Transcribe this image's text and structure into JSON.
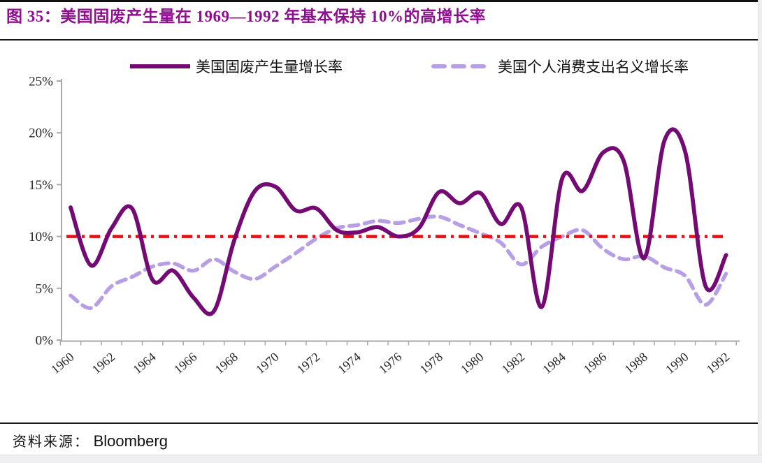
{
  "header": {
    "title_prefix": "图 35：",
    "title_text": "美国固废产生量在 1969—1992 年基本保持 10%的高增长率"
  },
  "footer": {
    "source_label": "资料来源：",
    "source_value": "Bloomberg"
  },
  "colors": {
    "title": "#8E108E",
    "series_solid": "#740B74",
    "series_dashed": "#B79FE5",
    "reference_line": "#E8100F",
    "axis": "#A8A8A8",
    "tick_label": "#262626"
  },
  "chart_data": {
    "type": "line",
    "title": "美国固废产生量在 1969—1992 年基本保持 10%的高增长率",
    "grid": false,
    "legend_position": "top",
    "ylim": [
      0,
      25
    ],
    "ytick_values": [
      0,
      5,
      10,
      15,
      20,
      25
    ],
    "ytick_labels": [
      "0%",
      "5%",
      "10%",
      "15%",
      "20%",
      "25%"
    ],
    "xtick_labels": [
      "1960",
      "1962",
      "1964",
      "1966",
      "1968",
      "1970",
      "1972",
      "1974",
      "1976",
      "1978",
      "1980",
      "1982",
      "1984",
      "1986",
      "1988",
      "1990",
      "1992"
    ],
    "x_years": [
      1960,
      1961,
      1962,
      1963,
      1964,
      1965,
      1966,
      1967,
      1968,
      1969,
      1970,
      1971,
      1972,
      1973,
      1974,
      1975,
      1976,
      1977,
      1978,
      1979,
      1980,
      1981,
      1982,
      1983,
      1984,
      1985,
      1986,
      1987,
      1988,
      1989,
      1990,
      1991,
      1992
    ],
    "series": [
      {
        "name": "美国固废产生量增长率",
        "line_style": "solid",
        "color": "#740B74",
        "unit": "%",
        "values": [
          12.8,
          7.2,
          10.8,
          12.7,
          5.8,
          6.7,
          4.1,
          2.8,
          9.7,
          14.4,
          14.8,
          12.5,
          12.7,
          10.6,
          10.4,
          10.9,
          10.0,
          10.8,
          14.3,
          13.2,
          14.2,
          11.2,
          12.8,
          3.2,
          15.6,
          14.4,
          18.1,
          17.3,
          7.9,
          19.3,
          18.2,
          5.2,
          8.2
        ]
      },
      {
        "name": "美国个人消费支出名义增长率",
        "line_style": "dashed",
        "color": "#B79FE5",
        "unit": "%",
        "values": [
          4.3,
          3.1,
          5.2,
          6.1,
          7.1,
          7.4,
          6.7,
          7.8,
          6.6,
          5.9,
          7.1,
          8.4,
          9.8,
          10.8,
          11.1,
          11.5,
          11.3,
          11.7,
          11.9,
          11.1,
          10.3,
          9.4,
          7.3,
          9.0,
          10.0,
          10.6,
          8.8,
          7.8,
          8.1,
          7.0,
          6.2,
          3.4,
          6.4
        ]
      }
    ],
    "reference_line": {
      "value": 10,
      "label": "10%",
      "style": "dash-dot",
      "color": "#E8100F"
    }
  }
}
